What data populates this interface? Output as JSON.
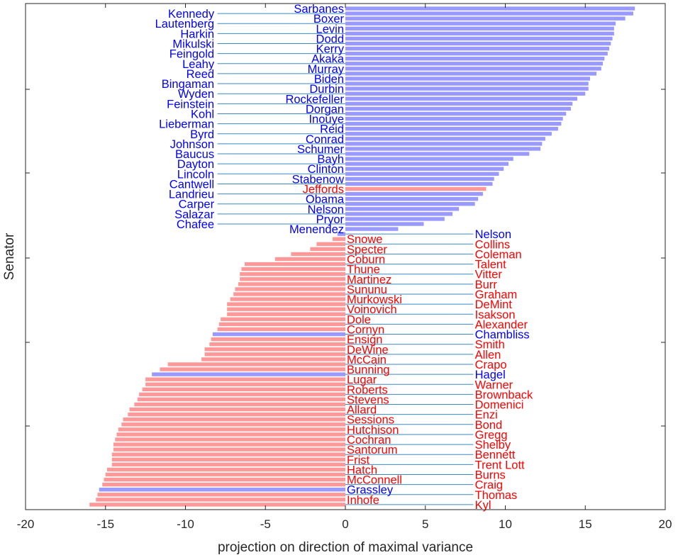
{
  "chart_data": {
    "type": "bar",
    "orientation": "horizontal",
    "xlabel": "projection on direction of maximal variance",
    "ylabel": "Senator",
    "xlim": [
      -20,
      20
    ],
    "xticks": [
      -20,
      -15,
      -10,
      -5,
      0,
      5,
      10,
      15,
      20
    ],
    "grid": false,
    "colors": {
      "D": "#9999ff",
      "R": "#ff9999",
      "D_label": "#0000ff",
      "R_label": "#ff0000",
      "leader": "#3a8ac0",
      "axis": "#262626"
    },
    "bars": [
      {
        "name": "Sarbanes",
        "value": 18.1,
        "party": "D",
        "side": "left"
      },
      {
        "name": "Kennedy",
        "value": 18.0,
        "party": "D",
        "side": "far"
      },
      {
        "name": "Boxer",
        "value": 17.5,
        "party": "D",
        "side": "left"
      },
      {
        "name": "Lautenberg",
        "value": 16.9,
        "party": "D",
        "side": "far"
      },
      {
        "name": "Levin",
        "value": 16.8,
        "party": "D",
        "side": "left"
      },
      {
        "name": "Harkin",
        "value": 16.8,
        "party": "D",
        "side": "far"
      },
      {
        "name": "Dodd",
        "value": 16.7,
        "party": "D",
        "side": "left"
      },
      {
        "name": "Mikulski",
        "value": 16.6,
        "party": "D",
        "side": "far"
      },
      {
        "name": "Kerry",
        "value": 16.5,
        "party": "D",
        "side": "left"
      },
      {
        "name": "Feingold",
        "value": 16.4,
        "party": "D",
        "side": "far"
      },
      {
        "name": "Akaka",
        "value": 16.2,
        "party": "D",
        "side": "left"
      },
      {
        "name": "Leahy",
        "value": 16.1,
        "party": "D",
        "side": "far"
      },
      {
        "name": "Murray",
        "value": 16.0,
        "party": "D",
        "side": "left"
      },
      {
        "name": "Reed",
        "value": 15.7,
        "party": "D",
        "side": "far"
      },
      {
        "name": "Biden",
        "value": 15.3,
        "party": "D",
        "side": "left"
      },
      {
        "name": "Bingaman",
        "value": 15.2,
        "party": "D",
        "side": "far"
      },
      {
        "name": "Durbin",
        "value": 15.2,
        "party": "D",
        "side": "left"
      },
      {
        "name": "Wyden",
        "value": 15.0,
        "party": "D",
        "side": "far"
      },
      {
        "name": "Rockefeller",
        "value": 14.5,
        "party": "D",
        "side": "left"
      },
      {
        "name": "Feinstein",
        "value": 14.2,
        "party": "D",
        "side": "far"
      },
      {
        "name": "Dorgan",
        "value": 14.1,
        "party": "D",
        "side": "left"
      },
      {
        "name": "Kohl",
        "value": 13.8,
        "party": "D",
        "side": "far"
      },
      {
        "name": "Inouye",
        "value": 13.6,
        "party": "D",
        "side": "left"
      },
      {
        "name": "Lieberman",
        "value": 13.5,
        "party": "D",
        "side": "far"
      },
      {
        "name": "Reid",
        "value": 13.3,
        "party": "D",
        "side": "left"
      },
      {
        "name": "Byrd",
        "value": 12.9,
        "party": "D",
        "side": "far"
      },
      {
        "name": "Conrad",
        "value": 12.5,
        "party": "D",
        "side": "left"
      },
      {
        "name": "Johnson",
        "value": 12.3,
        "party": "D",
        "side": "far"
      },
      {
        "name": "Schumer",
        "value": 12.2,
        "party": "D",
        "side": "left"
      },
      {
        "name": "Baucus",
        "value": 11.5,
        "party": "D",
        "side": "far"
      },
      {
        "name": "Bayh",
        "value": 10.5,
        "party": "D",
        "side": "left"
      },
      {
        "name": "Dayton",
        "value": 10.2,
        "party": "D",
        "side": "far"
      },
      {
        "name": "Clinton",
        "value": 9.9,
        "party": "D",
        "side": "left"
      },
      {
        "name": "Lincoln",
        "value": 9.6,
        "party": "D",
        "side": "far"
      },
      {
        "name": "Stabenow",
        "value": 9.3,
        "party": "D",
        "side": "left"
      },
      {
        "name": "Cantwell",
        "value": 9.2,
        "party": "D",
        "side": "far"
      },
      {
        "name": "Jeffords",
        "value": 8.8,
        "party": "R",
        "side": "left"
      },
      {
        "name": "Landrieu",
        "value": 8.6,
        "party": "D",
        "side": "far"
      },
      {
        "name": "Obama",
        "value": 8.3,
        "party": "D",
        "side": "left"
      },
      {
        "name": "Carper",
        "value": 8.1,
        "party": "D",
        "side": "far"
      },
      {
        "name": "Nelson",
        "value": 7.1,
        "party": "D",
        "side": "left"
      },
      {
        "name": "Salazar",
        "value": 6.7,
        "party": "D",
        "side": "far"
      },
      {
        "name": "Pryor",
        "value": 6.2,
        "party": "D",
        "side": "left"
      },
      {
        "name": "Chafee",
        "value": 4.9,
        "party": "D",
        "side": "far"
      },
      {
        "name": "Menendez",
        "value": 3.3,
        "party": "D",
        "side": "left"
      },
      {
        "name": "Nelson",
        "value": -0.5,
        "party": "D",
        "side": "far"
      },
      {
        "name": "Snowe",
        "value": -0.8,
        "party": "R",
        "side": "right"
      },
      {
        "name": "Collins",
        "value": -1.8,
        "party": "R",
        "side": "far"
      },
      {
        "name": "Specter",
        "value": -2.2,
        "party": "R",
        "side": "right"
      },
      {
        "name": "Coleman",
        "value": -3.4,
        "party": "R",
        "side": "far"
      },
      {
        "name": "Coburn",
        "value": -4.4,
        "party": "R",
        "side": "right"
      },
      {
        "name": "Talent",
        "value": -6.3,
        "party": "R",
        "side": "far"
      },
      {
        "name": "Thune",
        "value": -6.5,
        "party": "R",
        "side": "right"
      },
      {
        "name": "Vitter",
        "value": -6.6,
        "party": "R",
        "side": "far"
      },
      {
        "name": "Martinez",
        "value": -6.6,
        "party": "R",
        "side": "right"
      },
      {
        "name": "Burr",
        "value": -6.7,
        "party": "R",
        "side": "far"
      },
      {
        "name": "Sununu",
        "value": -6.9,
        "party": "R",
        "side": "right"
      },
      {
        "name": "Graham",
        "value": -7.0,
        "party": "R",
        "side": "far"
      },
      {
        "name": "Murkowski",
        "value": -7.2,
        "party": "R",
        "side": "right"
      },
      {
        "name": "DeMint",
        "value": -7.4,
        "party": "R",
        "side": "far"
      },
      {
        "name": "Voinovich",
        "value": -7.4,
        "party": "R",
        "side": "right"
      },
      {
        "name": "Isakson",
        "value": -7.4,
        "party": "R",
        "side": "far"
      },
      {
        "name": "Dole",
        "value": -7.8,
        "party": "R",
        "side": "right"
      },
      {
        "name": "Alexander",
        "value": -7.9,
        "party": "R",
        "side": "far"
      },
      {
        "name": "Cornyn",
        "value": -8.0,
        "party": "R",
        "side": "right"
      },
      {
        "name": "Chambliss",
        "value": -8.3,
        "party": "D",
        "side": "far"
      },
      {
        "name": "Ensign",
        "value": -8.4,
        "party": "R",
        "side": "right"
      },
      {
        "name": "Smith",
        "value": -8.5,
        "party": "R",
        "side": "far"
      },
      {
        "name": "DeWine",
        "value": -8.8,
        "party": "R",
        "side": "right"
      },
      {
        "name": "Allen",
        "value": -8.8,
        "party": "R",
        "side": "far"
      },
      {
        "name": "McCain",
        "value": -9.0,
        "party": "R",
        "side": "right"
      },
      {
        "name": "Crapo",
        "value": -11.1,
        "party": "R",
        "side": "far"
      },
      {
        "name": "Bunning",
        "value": -11.6,
        "party": "R",
        "side": "right"
      },
      {
        "name": "Hagel",
        "value": -12.1,
        "party": "D",
        "side": "far"
      },
      {
        "name": "Lugar",
        "value": -12.5,
        "party": "R",
        "side": "right"
      },
      {
        "name": "Warner",
        "value": -12.5,
        "party": "R",
        "side": "far"
      },
      {
        "name": "Roberts",
        "value": -12.7,
        "party": "R",
        "side": "right"
      },
      {
        "name": "Brownback",
        "value": -12.9,
        "party": "R",
        "side": "far"
      },
      {
        "name": "Stevens",
        "value": -13.0,
        "party": "R",
        "side": "right"
      },
      {
        "name": "Domenici",
        "value": -13.2,
        "party": "R",
        "side": "far"
      },
      {
        "name": "Allard",
        "value": -13.5,
        "party": "R",
        "side": "right"
      },
      {
        "name": "Enzi",
        "value": -13.6,
        "party": "R",
        "side": "far"
      },
      {
        "name": "Sessions",
        "value": -13.9,
        "party": "R",
        "side": "right"
      },
      {
        "name": "Bond",
        "value": -14.0,
        "party": "R",
        "side": "far"
      },
      {
        "name": "Hutchison",
        "value": -14.2,
        "party": "R",
        "side": "right"
      },
      {
        "name": "Gregg",
        "value": -14.3,
        "party": "R",
        "side": "far"
      },
      {
        "name": "Cochran",
        "value": -14.4,
        "party": "R",
        "side": "right"
      },
      {
        "name": "Shelby",
        "value": -14.5,
        "party": "R",
        "side": "far"
      },
      {
        "name": "Santorum",
        "value": -14.5,
        "party": "R",
        "side": "right"
      },
      {
        "name": "Bennett",
        "value": -14.6,
        "party": "R",
        "side": "far"
      },
      {
        "name": "Frist",
        "value": -14.6,
        "party": "R",
        "side": "right"
      },
      {
        "name": "Trent Lott",
        "value": -14.6,
        "party": "R",
        "side": "far"
      },
      {
        "name": "Hatch",
        "value": -14.9,
        "party": "R",
        "side": "right"
      },
      {
        "name": "Burns",
        "value": -15.0,
        "party": "R",
        "side": "far"
      },
      {
        "name": "McConnell",
        "value": -15.1,
        "party": "R",
        "side": "right"
      },
      {
        "name": "Craig",
        "value": -15.2,
        "party": "R",
        "side": "far"
      },
      {
        "name": "Grassley",
        "value": -15.4,
        "party": "D",
        "side": "right"
      },
      {
        "name": "Thomas",
        "value": -15.5,
        "party": "R",
        "side": "far"
      },
      {
        "name": "Inhofe",
        "value": -15.6,
        "party": "R",
        "side": "right"
      },
      {
        "name": "Kyl",
        "value": -16.0,
        "party": "R",
        "side": "far"
      }
    ]
  }
}
